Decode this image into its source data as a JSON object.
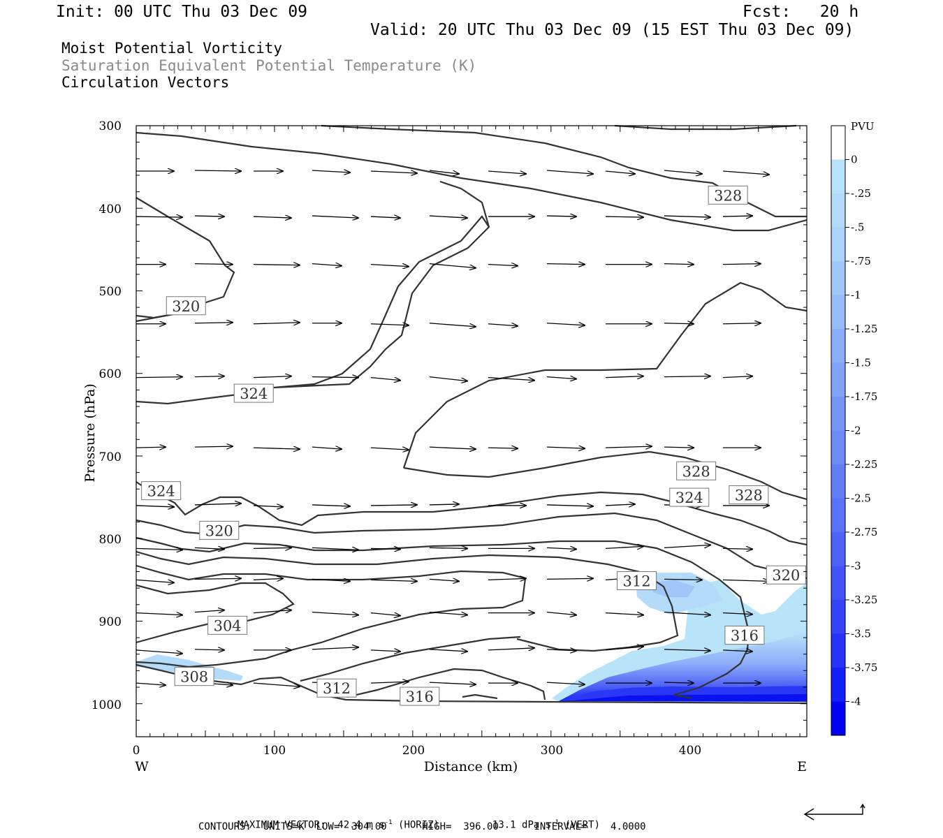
{
  "header": {
    "init": "Init: 00 UTC Thu 03 Dec 09",
    "fcst": "Fcst:   20 h",
    "valid": "Valid: 20 UTC Thu 03 Dec 09 (15 EST Thu 03 Dec 09)"
  },
  "titles": {
    "line1": "Moist Potential Vorticity",
    "line2": "Saturation Equivalent Potential Temperature (K)",
    "line3": "Circulation Vectors"
  },
  "chart_data": {
    "type": "contour",
    "xlabel": "Distance (km)",
    "ylabel": "Pressure (hPa)",
    "xlim": [
      0,
      485
    ],
    "ylim": [
      1040,
      300
    ],
    "x_ticks": [
      "0",
      "100",
      "200",
      "300",
      "400"
    ],
    "y_ticks": [
      "300",
      "400",
      "500",
      "600",
      "700",
      "800",
      "900",
      "1000"
    ],
    "x_end_labels": {
      "left": "W",
      "right": "E"
    },
    "colorbar": {
      "title": "PVU",
      "labels": [
        "0",
        "-.25",
        "-.5",
        "-.75",
        "-1",
        "-1.25",
        "-1.5",
        "-1.75",
        "-2",
        "-2.25",
        "-2.5",
        "-2.75",
        "-3",
        "-3.25",
        "-3.5",
        "-3.75",
        "-4"
      ],
      "colors": [
        "#ffffff",
        "#b8e4fa",
        "#b4dcfa",
        "#aad2fa",
        "#a0c6fa",
        "#96bafa",
        "#8caefa",
        "#82a2fa",
        "#7896fa",
        "#6e8afa",
        "#647efa",
        "#5a72fa",
        "#4e62fa",
        "#4252fa",
        "#3442fa",
        "#2632fa",
        "#1420fa",
        "#0000f5"
      ]
    },
    "contour_labels": [
      {
        "text": "320",
        "x": 36,
        "p": 518
      },
      {
        "text": "324",
        "x": 85,
        "p": 624
      },
      {
        "text": "324",
        "x": 18,
        "p": 742
      },
      {
        "text": "320",
        "x": 60,
        "p": 790
      },
      {
        "text": "304",
        "x": 66,
        "p": 905
      },
      {
        "text": "308",
        "x": 42,
        "p": 967
      },
      {
        "text": "312",
        "x": 145,
        "p": 981
      },
      {
        "text": "316",
        "x": 205,
        "p": 991
      },
      {
        "text": "312",
        "x": 362,
        "p": 851
      },
      {
        "text": "316",
        "x": 440,
        "p": 917
      },
      {
        "text": "320",
        "x": 470,
        "p": 844
      },
      {
        "text": "324",
        "x": 400,
        "p": 750
      },
      {
        "text": "328",
        "x": 405,
        "p": 718
      },
      {
        "text": "328",
        "x": 443,
        "p": 747
      },
      {
        "text": "328",
        "x": 428,
        "p": 384
      }
    ]
  },
  "footer": {
    "max_vector_label": "MAXIMUM VECTOR:",
    "horiz_value": "42.4 m s",
    "horiz_exp": "-1",
    "horiz_tag": "(HORIZ)",
    "vert_value": "13.1 dPa s",
    "vert_exp": "-1",
    "vert_tag": "(VERT)",
    "contours_line": "CONTOURS:  UNITS=K  LOW=  304.00      HIGH=  396.00      INTERVAL=    4.0000"
  }
}
